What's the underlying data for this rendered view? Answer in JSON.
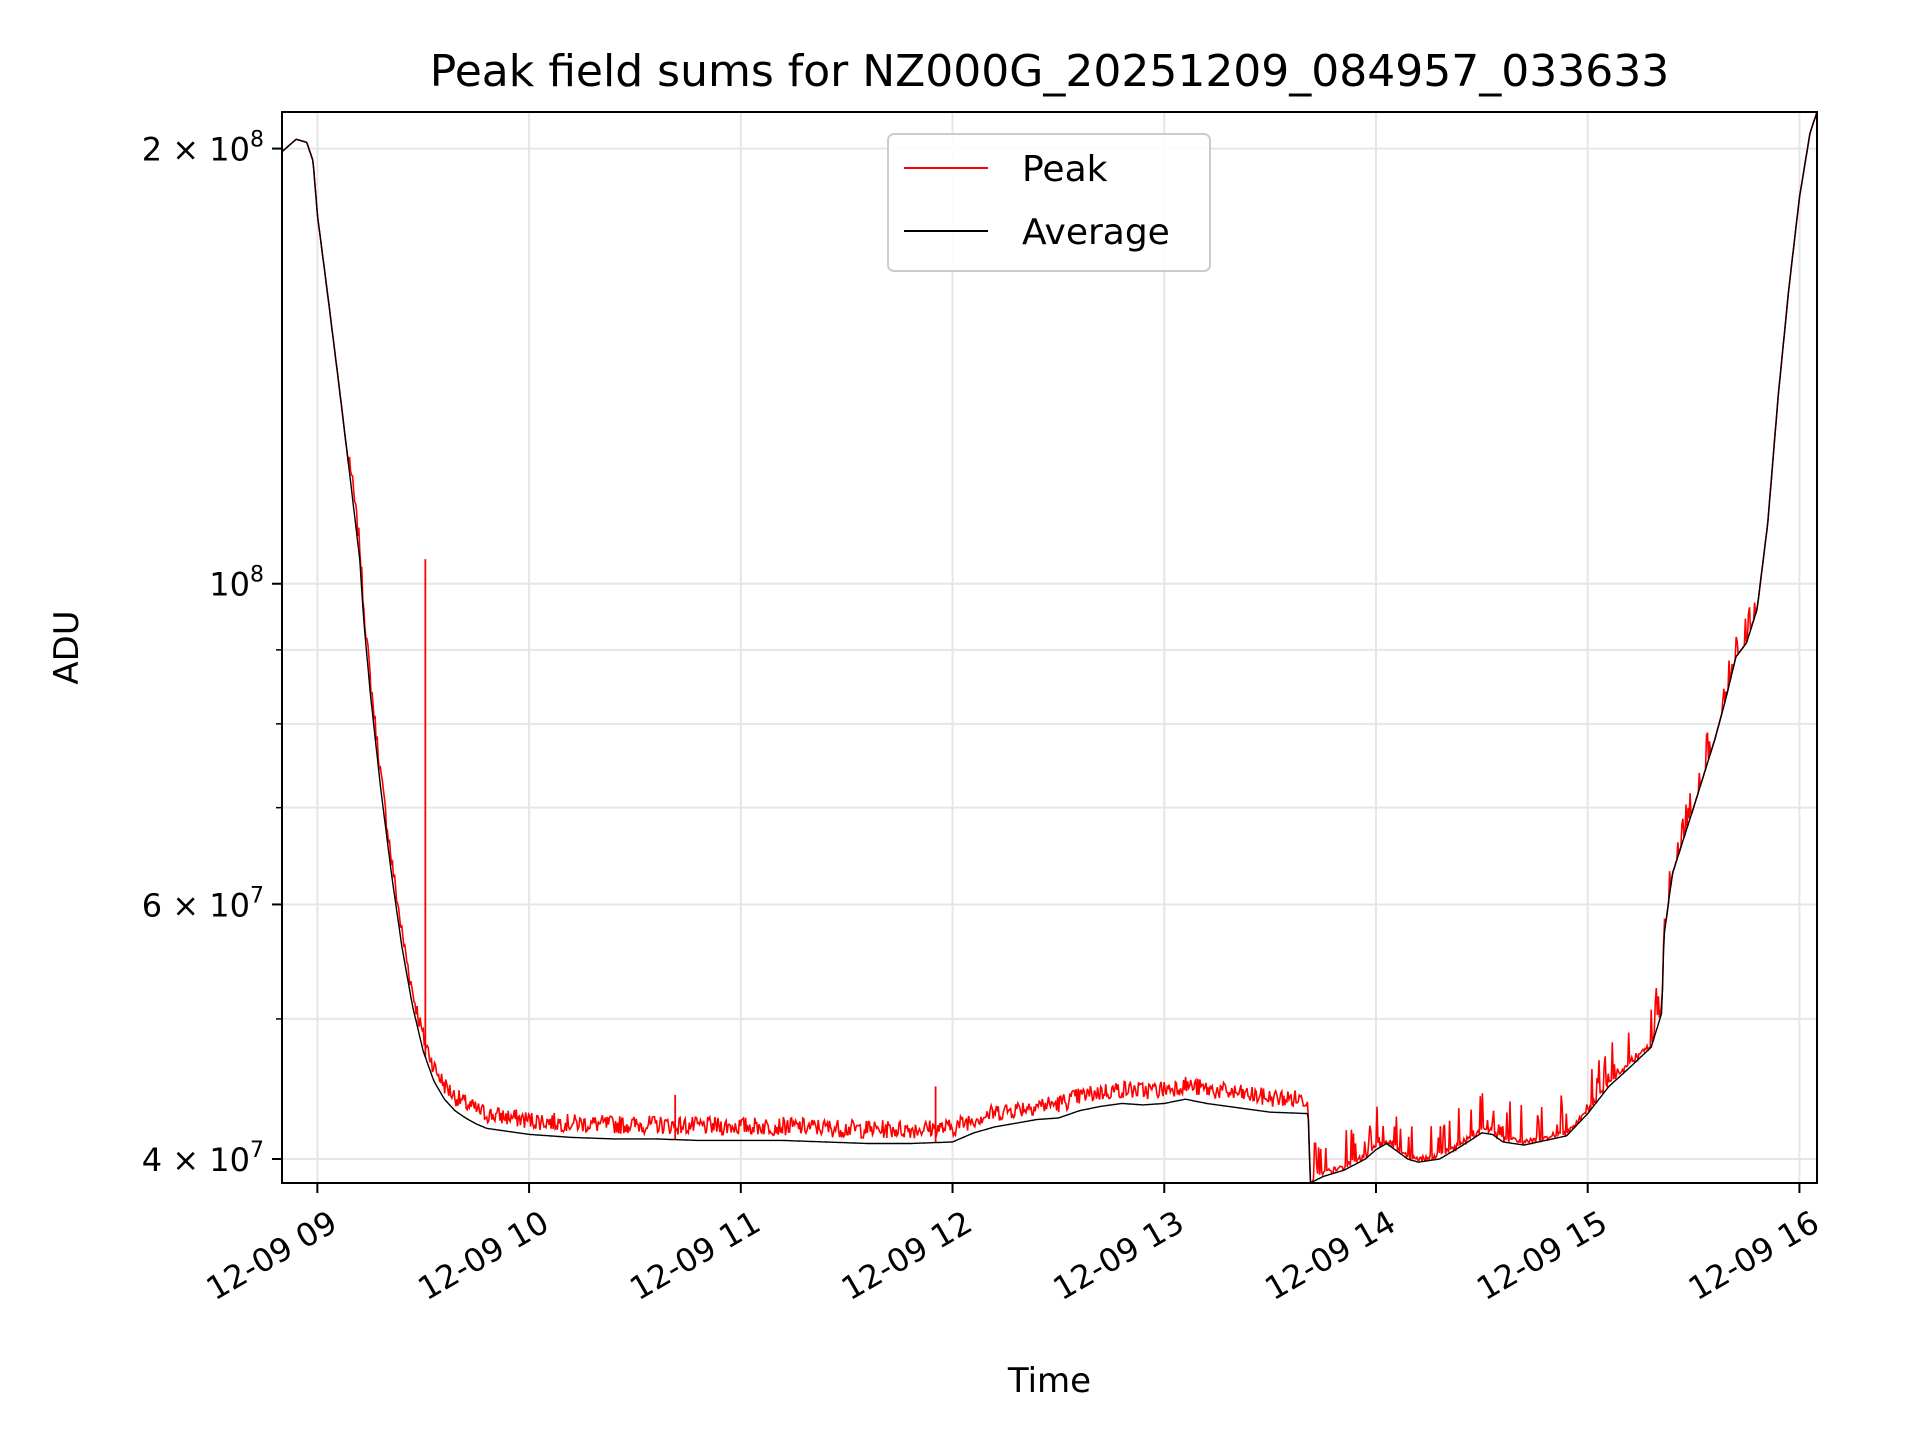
{
  "chart_data": {
    "type": "line",
    "title": "Peak field sums for NZ000G_20251209_084957_033633",
    "xlabel": "Time",
    "ylabel": "ADU",
    "yscale": "log",
    "ylim": [
      38500000,
      212000000
    ],
    "xlim_hours": [
      8.833,
      16.083
    ],
    "grid": true,
    "legend_position": "upper center",
    "x_ticks": [
      {
        "value": 9,
        "label": "12-09 09"
      },
      {
        "value": 10,
        "label": "12-09 10"
      },
      {
        "value": 11,
        "label": "12-09 11"
      },
      {
        "value": 12,
        "label": "12-09 12"
      },
      {
        "value": 13,
        "label": "12-09 13"
      },
      {
        "value": 14,
        "label": "12-09 14"
      },
      {
        "value": 15,
        "label": "12-09 15"
      },
      {
        "value": 16,
        "label": "12-09 16"
      }
    ],
    "y_major_ticks": [
      {
        "value": 40000000,
        "label": "4 × 10",
        "exp": "7"
      },
      {
        "value": 60000000,
        "label": "6 × 10",
        "exp": "7"
      },
      {
        "value": 100000000,
        "label": "10",
        "exp": "8"
      },
      {
        "value": 200000000,
        "label": "2 × 10",
        "exp": "8"
      }
    ],
    "y_minor_ticks": [
      50000000,
      70000000,
      80000000,
      90000000
    ],
    "series": [
      {
        "name": "Peak",
        "color": "#ff0000",
        "noise": true,
        "spikes": [
          [
            9.51,
            104000000
          ],
          [
            10.69,
            44300000
          ],
          [
            11.92,
            44900000
          ]
        ]
      },
      {
        "name": "Average",
        "color": "#000000",
        "x_hours": [
          8.833,
          8.9,
          8.95,
          8.98,
          9.0,
          9.05,
          9.1,
          9.15,
          9.2,
          9.22,
          9.25,
          9.3,
          9.35,
          9.4,
          9.45,
          9.5,
          9.55,
          9.6,
          9.65,
          9.7,
          9.75,
          9.8,
          9.9,
          10.0,
          10.2,
          10.4,
          10.6,
          10.8,
          11.0,
          11.2,
          11.4,
          11.6,
          11.8,
          12.0,
          12.1,
          12.2,
          12.4,
          12.5,
          12.6,
          12.7,
          12.8,
          12.9,
          13.0,
          13.1,
          13.2,
          13.3,
          13.4,
          13.5,
          13.68,
          13.69,
          13.75,
          13.85,
          13.95,
          14.0,
          14.05,
          14.1,
          14.15,
          14.2,
          14.3,
          14.4,
          14.5,
          14.55,
          14.6,
          14.7,
          14.8,
          14.9,
          15.0,
          15.1,
          15.2,
          15.3,
          15.35,
          15.36,
          15.4,
          15.5,
          15.6,
          15.65,
          15.7,
          15.75,
          15.8,
          15.85,
          15.9,
          15.95,
          16.0,
          16.05,
          16.083
        ],
        "y_adu": [
          199000000,
          203000000,
          202000000,
          196000000,
          180000000,
          158000000,
          138000000,
          120000000,
          104000000,
          94000000,
          84000000,
          72000000,
          63000000,
          56000000,
          51000000,
          47500000,
          45300000,
          44000000,
          43200000,
          42700000,
          42300000,
          42000000,
          41800000,
          41600000,
          41400000,
          41300000,
          41300000,
          41200000,
          41200000,
          41200000,
          41100000,
          41000000,
          41000000,
          41100000,
          41700000,
          42100000,
          42600000,
          42700000,
          43200000,
          43500000,
          43700000,
          43600000,
          43700000,
          44000000,
          43700000,
          43500000,
          43300000,
          43100000,
          43000000,
          38500000,
          38900000,
          39300000,
          40000000,
          40600000,
          41000000,
          40500000,
          40000000,
          39800000,
          40000000,
          40800000,
          41700000,
          41600000,
          41100000,
          40900000,
          41200000,
          41500000,
          43000000,
          44900000,
          46300000,
          47800000,
          50500000,
          57000000,
          63000000,
          70000000,
          78000000,
          83000000,
          89000000,
          91000000,
          96000000,
          110000000,
          135000000,
          160000000,
          185000000,
          205000000,
          212000000
        ]
      }
    ]
  }
}
